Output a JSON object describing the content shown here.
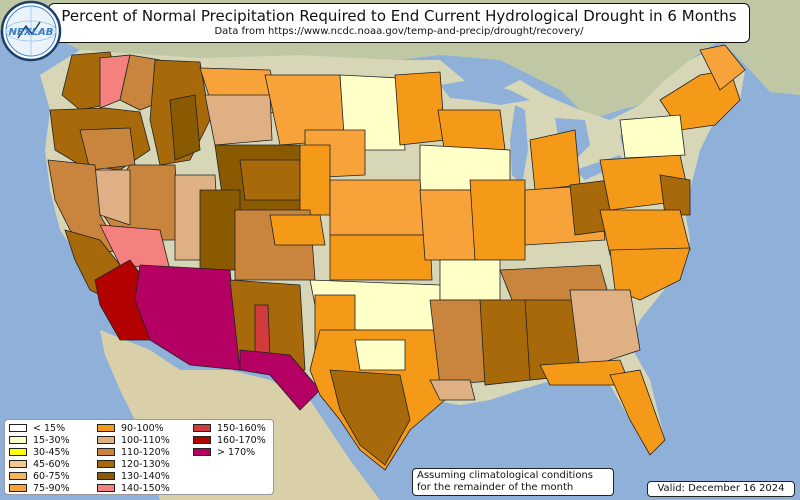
{
  "header": {
    "title": "Percent of Normal Precipitation Required to End Current Hydrological Drought in 6 Months",
    "subtitle": "Data from https://www.ncdc.noaa.gov/temp-and-precip/drought/recovery/"
  },
  "legend": {
    "items": [
      {
        "label": "< 15%",
        "color": "#ffffff"
      },
      {
        "label": "15-30%",
        "color": "#ffffc8"
      },
      {
        "label": "30-45%",
        "color": "#ffff00"
      },
      {
        "label": "45-60%",
        "color": "#f2c98f"
      },
      {
        "label": "60-75%",
        "color": "#f7b55a"
      },
      {
        "label": "75-90%",
        "color": "#f8a23a"
      },
      {
        "label": "90-100%",
        "color": "#f59a18"
      },
      {
        "label": "100-110%",
        "color": "#dfb083"
      },
      {
        "label": "110-120%",
        "color": "#c9853d"
      },
      {
        "label": "120-130%",
        "color": "#a8690a"
      },
      {
        "label": "130-140%",
        "color": "#8a5a00"
      },
      {
        "label": "140-150%",
        "color": "#f4817d"
      },
      {
        "label": "150-160%",
        "color": "#d23b3b"
      },
      {
        "label": "160-170%",
        "color": "#b30000"
      },
      {
        "label": "> 170%",
        "color": "#b30062"
      }
    ]
  },
  "note": {
    "line1": "Assuming climatological conditions",
    "line2": "for the remainder of the month"
  },
  "valid": {
    "label": "Valid: December 16 2024"
  },
  "logo": {
    "text": "NEXLAB"
  },
  "colors": {
    "ocean": "#8fb0d8",
    "land": "#d7d7b8",
    "border": "#222222"
  }
}
